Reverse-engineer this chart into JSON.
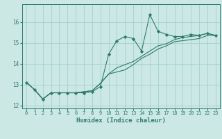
{
  "xlabel": "Humidex (Indice chaleur)",
  "bg_color": "#cce8e4",
  "line_color": "#2d7a6e",
  "grid_color": "#99cccc",
  "hours": [
    0,
    1,
    2,
    3,
    4,
    5,
    6,
    7,
    8,
    9,
    10,
    11,
    12,
    13,
    14,
    15,
    16,
    17,
    18,
    19,
    20,
    21,
    22,
    23
  ],
  "line1": [
    13.1,
    12.75,
    12.3,
    12.6,
    12.6,
    12.6,
    12.6,
    12.6,
    12.65,
    12.9,
    14.45,
    15.1,
    15.3,
    15.2,
    14.6,
    16.35,
    15.55,
    15.4,
    15.3,
    15.3,
    15.4,
    15.35,
    15.45,
    15.35
  ],
  "line2": [
    13.1,
    12.75,
    12.3,
    12.6,
    12.6,
    12.6,
    12.6,
    12.65,
    12.7,
    13.05,
    13.5,
    13.8,
    13.95,
    14.1,
    14.35,
    14.6,
    14.85,
    14.95,
    15.15,
    15.25,
    15.3,
    15.35,
    15.45,
    15.35
  ],
  "line3": [
    13.1,
    12.75,
    12.3,
    12.6,
    12.6,
    12.6,
    12.6,
    12.65,
    12.7,
    13.05,
    13.5,
    13.6,
    13.7,
    13.95,
    14.25,
    14.45,
    14.7,
    14.85,
    15.05,
    15.1,
    15.15,
    15.2,
    15.35,
    15.35
  ],
  "ylim_min": 11.85,
  "ylim_max": 16.85,
  "yticks": [
    12,
    13,
    14,
    15,
    16
  ],
  "xlim_min": -0.5,
  "xlim_max": 23.5
}
